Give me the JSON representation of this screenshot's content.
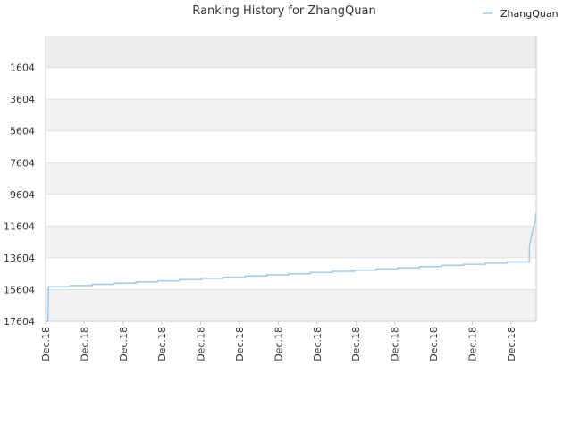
{
  "chart_data": {
    "type": "line",
    "title": "Ranking History for ZhangQuan",
    "xlabel": "",
    "ylabel": "",
    "y_inverted": true,
    "ylim": [
      -400,
      17604
    ],
    "y_ticks": [
      1604,
      3604,
      5604,
      7604,
      9604,
      11604,
      13604,
      15604,
      17604
    ],
    "x_tick_labels": [
      "Dec.18",
      "Dec.18",
      "Dec.18",
      "Dec.18",
      "Dec.18",
      "Dec.18",
      "Dec.18",
      "Dec.18",
      "Dec.18",
      "Dec.18",
      "Dec.18",
      "Dec.18",
      "Dec.18"
    ],
    "grid": true,
    "alternating_bands": true,
    "legend_position": "top-right",
    "colors": {
      "line": "#9ec9ee",
      "band_shade": "#f2f2f2",
      "grid": "#e0e0e0",
      "axis": "#cccccc"
    },
    "series": [
      {
        "name": "ZhangQuan",
        "x": [
          0.0,
          0.3,
          0.35,
          0.7,
          0.75,
          0.96,
          0.975,
          0.985,
          1.0
        ],
        "y": [
          17604,
          17604,
          15400,
          14750,
          13900,
          13900,
          12200,
          11600,
          10700
        ]
      }
    ]
  }
}
